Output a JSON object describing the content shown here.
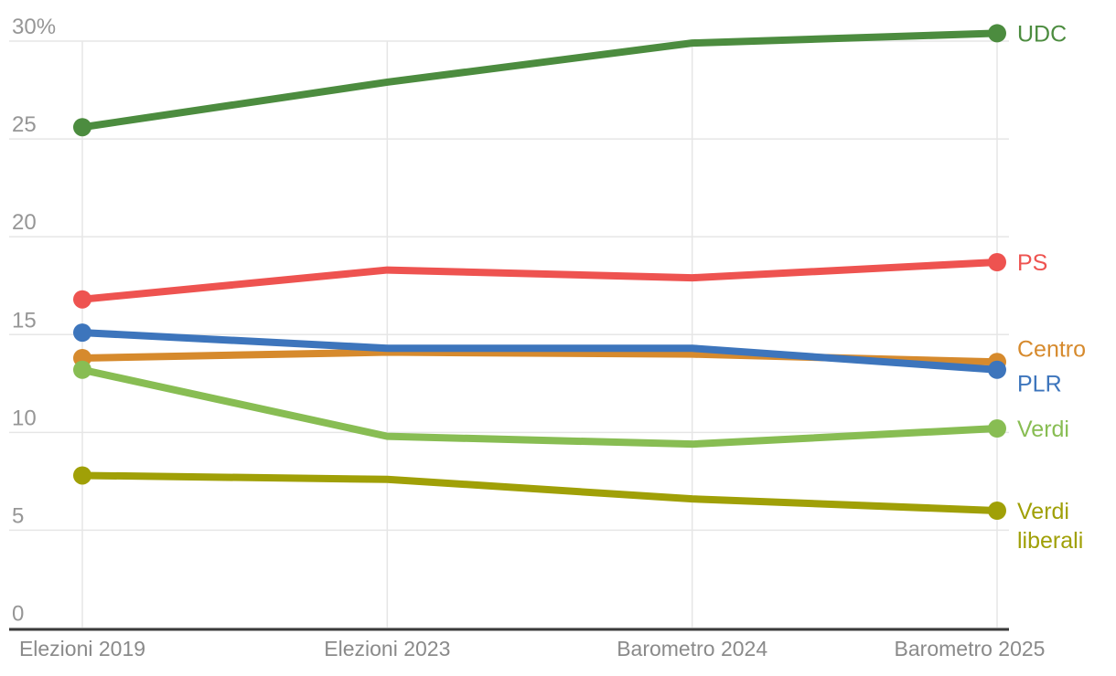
{
  "chart_data": {
    "type": "line",
    "title": "",
    "categories": [
      "Elezioni 2019",
      "Elezioni 2023",
      "Barometro 2024",
      "Barometro 2025"
    ],
    "series": [
      {
        "name": "UDC",
        "label_lines": [
          "UDC"
        ],
        "color": "#4c8c3f",
        "values": [
          25.6,
          27.9,
          29.9,
          30.4
        ]
      },
      {
        "name": "PS",
        "label_lines": [
          "PS"
        ],
        "color": "#ee5350",
        "values": [
          16.8,
          18.3,
          17.9,
          18.7
        ]
      },
      {
        "name": "Centro",
        "label_lines": [
          "Centro"
        ],
        "color": "#d68a2d",
        "values": [
          13.8,
          14.1,
          14.0,
          13.6
        ]
      },
      {
        "name": "PLR",
        "label_lines": [
          "PLR"
        ],
        "color": "#3d75bc",
        "values": [
          15.1,
          14.3,
          14.3,
          13.2
        ]
      },
      {
        "name": "Verdi",
        "label_lines": [
          "Verdi"
        ],
        "color": "#88bd53",
        "values": [
          13.2,
          9.8,
          9.4,
          10.2
        ]
      },
      {
        "name": "Verdi liberali",
        "label_lines": [
          "Verdi",
          "liberali"
        ],
        "color": "#a0a007",
        "values": [
          7.8,
          7.6,
          6.6,
          6.0
        ]
      }
    ],
    "y_ticks": [
      {
        "label": "30%",
        "value": 30
      },
      {
        "label": "25",
        "value": 25
      },
      {
        "label": "20",
        "value": 20
      },
      {
        "label": "15",
        "value": 15
      },
      {
        "label": "10",
        "value": 10
      },
      {
        "label": "5",
        "value": 5
      },
      {
        "label": "0",
        "value": 0
      }
    ],
    "ylim": [
      0,
      30
    ],
    "grid": true,
    "legend_position": "right-inline",
    "colors": {
      "grid": "#e6e6e6",
      "axis": "#3b3b3b",
      "y_tick_text": "#969696",
      "x_tick_text": "#8a8a8a"
    }
  }
}
